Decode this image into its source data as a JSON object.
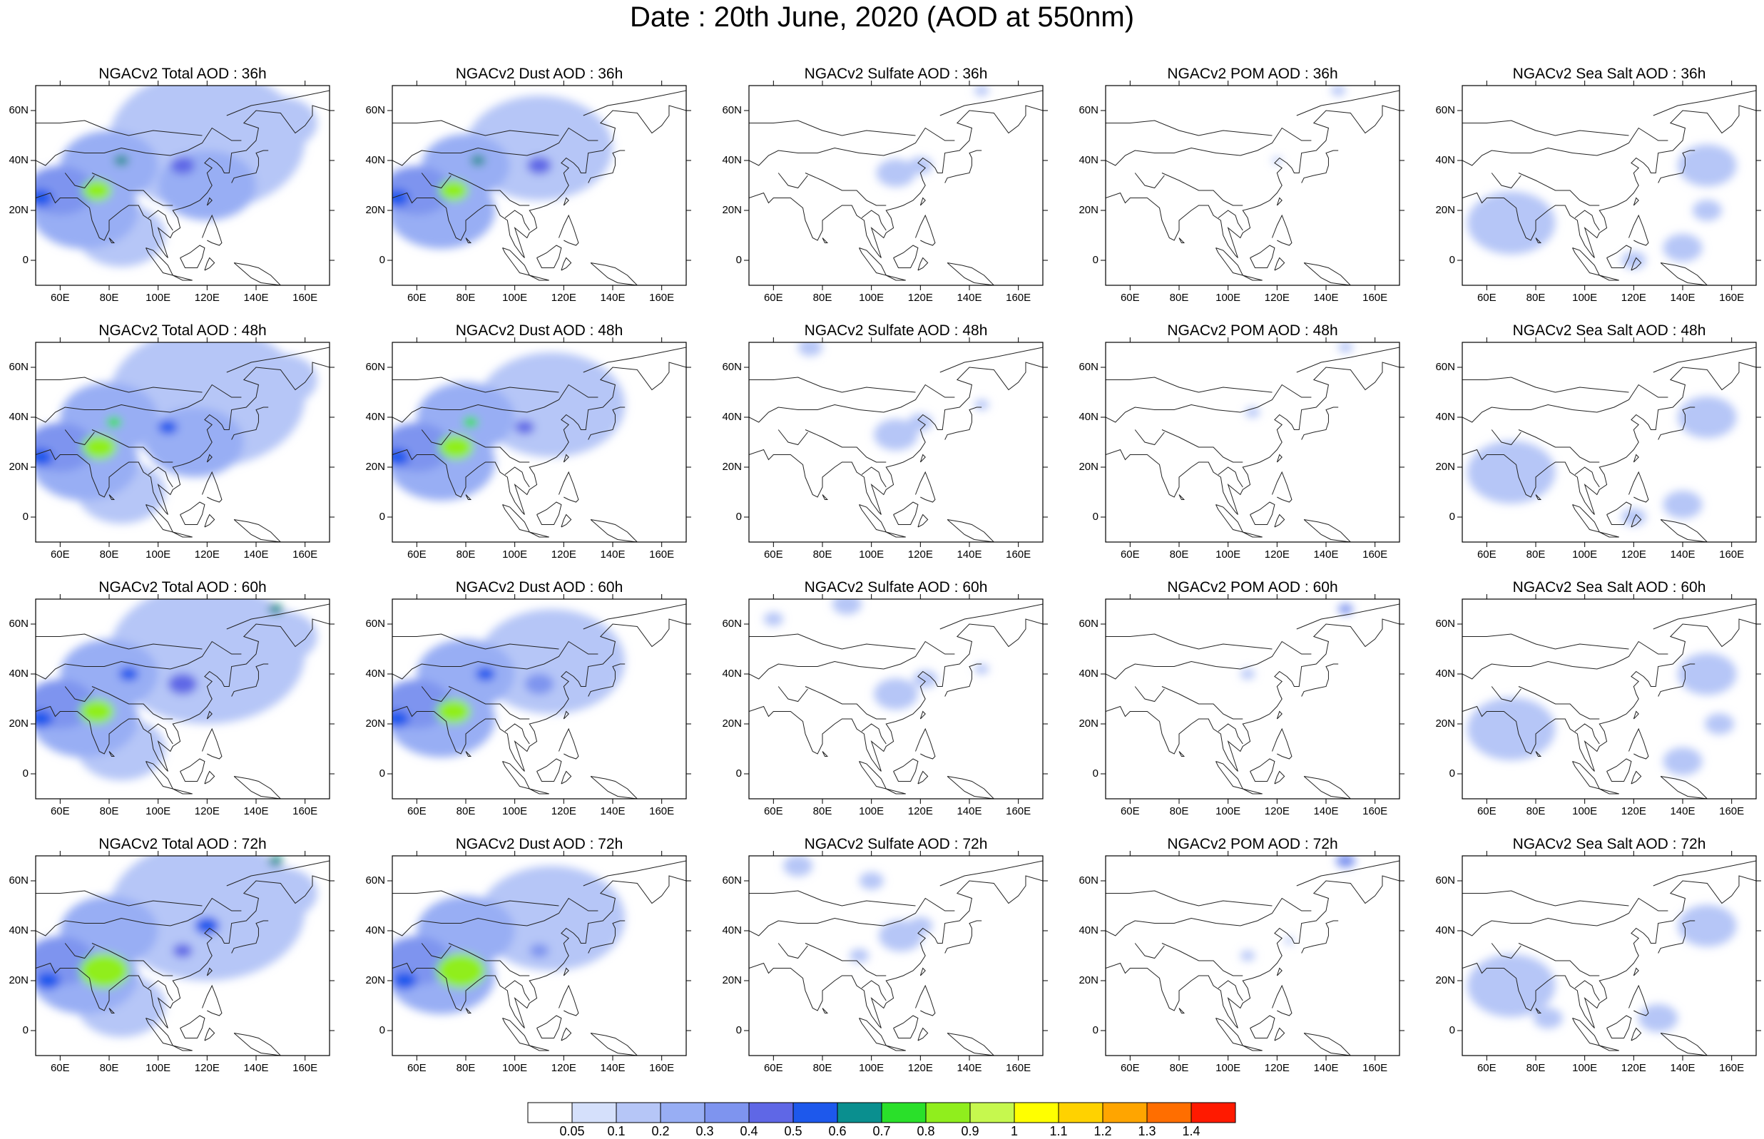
{
  "title": "Date : 20th June, 2020 (AOD at 550nm)",
  "rows": [
    "36h",
    "48h",
    "60h",
    "72h"
  ],
  "species": [
    {
      "key": "total",
      "titles": [
        "NGACv2 Total AOD : 36h",
        "NGACv2 Total AOD : 48h",
        "NGACv2 Total AOD : 60h",
        "NGACv2 Total AOD : 72h"
      ]
    },
    {
      "key": "dust",
      "titles": [
        "NGACv2 Dust AOD : 36h",
        "NGACv2 Dust AOD : 48h",
        "NGACv2 Dust AOD : 60h",
        "NGACv2 Dust AOD : 72h"
      ]
    },
    {
      "key": "sulfate",
      "titles": [
        "NGACv2 Sulfate AOD : 36h",
        "NGACv2 Sulfate AOD : 48h",
        "NGACv2 Sulfate AOD : 60h",
        "NGACv2 Sulfate AOD : 72h"
      ]
    },
    {
      "key": "pom",
      "titles": [
        "NGACv2 POM AOD : 36h",
        "NGACv2 POM AOD : 48h",
        "NGACv2 POM AOD : 60h",
        "NGACv2 POM AOD : 72h"
      ]
    },
    {
      "key": "seasalt",
      "titles": [
        "NGACv2 Sea Salt AOD : 36h",
        "NGACv2 Sea Salt AOD : 48h",
        "NGACv2 Sea Salt AOD : 60h",
        "NGACv2 Sea Salt  AOD : 72h"
      ]
    }
  ],
  "axes": {
    "lon_range": [
      50,
      170
    ],
    "lat_range": [
      -10,
      70
    ],
    "xticks": [
      "60E",
      "80E",
      "100E",
      "120E",
      "140E",
      "160E"
    ],
    "yticks": [
      "60N",
      "40N",
      "20N",
      "0"
    ]
  },
  "colorbar": {
    "levels": [
      "0.05",
      "0.1",
      "0.2",
      "0.3",
      "0.4",
      "0.5",
      "0.6",
      "0.7",
      "0.8",
      "0.9",
      "1",
      "1.1",
      "1.2",
      "1.3",
      "1.4"
    ],
    "colors": [
      "#ffffff",
      "#d5e0fb",
      "#b6c6f7",
      "#98aef4",
      "#7e94ef",
      "#5f67e6",
      "#1d58ec",
      "#0a8f8f",
      "#2ae02a",
      "#90ee1d",
      "#c6f84e",
      "#ffff00",
      "#ffd200",
      "#ffa500",
      "#ff6e00",
      "#ff1a00"
    ]
  },
  "chart_data": {
    "type": "map",
    "variable": "AOD at 550nm",
    "fields_note": "Approximate aerosol optical depth blobs (lon, lat, radius_deg, aod) estimated from shading",
    "fields": {
      "total": [
        [
          [
            70,
            20,
            22,
            0.2
          ],
          [
            60,
            28,
            14,
            0.3
          ],
          [
            80,
            38,
            20,
            0.2
          ],
          [
            120,
            48,
            40,
            0.1
          ],
          [
            75,
            28,
            6,
            0.8
          ],
          [
            85,
            40,
            3,
            0.6
          ],
          [
            110,
            38,
            5,
            0.4
          ],
          [
            120,
            30,
            20,
            0.2
          ],
          [
            150,
            55,
            15,
            0.1
          ],
          [
            85,
            10,
            18,
            0.1
          ],
          [
            52,
            25,
            5,
            0.5
          ]
        ],
        [
          [
            70,
            22,
            22,
            0.2
          ],
          [
            60,
            28,
            14,
            0.3
          ],
          [
            80,
            40,
            20,
            0.2
          ],
          [
            120,
            48,
            40,
            0.1
          ],
          [
            76,
            28,
            7,
            0.85
          ],
          [
            82,
            38,
            3,
            0.7
          ],
          [
            104,
            36,
            4,
            0.5
          ],
          [
            115,
            30,
            20,
            0.2
          ],
          [
            150,
            55,
            15,
            0.1
          ],
          [
            85,
            10,
            18,
            0.1
          ],
          [
            52,
            24,
            5,
            0.5
          ]
        ],
        [
          [
            70,
            22,
            22,
            0.2
          ],
          [
            60,
            28,
            14,
            0.3
          ],
          [
            80,
            40,
            20,
            0.2
          ],
          [
            120,
            48,
            40,
            0.15
          ],
          [
            75,
            25,
            7,
            0.85
          ],
          [
            88,
            40,
            4,
            0.5
          ],
          [
            110,
            36,
            6,
            0.4
          ],
          [
            148,
            66,
            3,
            0.6
          ],
          [
            150,
            55,
            15,
            0.1
          ],
          [
            85,
            10,
            18,
            0.1
          ],
          [
            52,
            22,
            5,
            0.5
          ]
        ],
        [
          [
            70,
            22,
            22,
            0.25
          ],
          [
            60,
            28,
            14,
            0.3
          ],
          [
            80,
            40,
            20,
            0.2
          ],
          [
            120,
            48,
            40,
            0.15
          ],
          [
            78,
            24,
            10,
            0.85
          ],
          [
            120,
            42,
            5,
            0.5
          ],
          [
            110,
            32,
            4,
            0.4
          ],
          [
            148,
            68,
            3,
            0.6
          ],
          [
            150,
            55,
            15,
            0.1
          ],
          [
            85,
            10,
            18,
            0.1
          ],
          [
            55,
            20,
            5,
            0.5
          ]
        ]
      ],
      "dust": [
        [
          [
            70,
            20,
            22,
            0.2
          ],
          [
            60,
            28,
            14,
            0.3
          ],
          [
            80,
            38,
            18,
            0.2
          ],
          [
            110,
            45,
            30,
            0.1
          ],
          [
            75,
            28,
            6,
            0.8
          ],
          [
            85,
            40,
            3,
            0.6
          ],
          [
            110,
            38,
            5,
            0.4
          ],
          [
            52,
            25,
            5,
            0.5
          ]
        ],
        [
          [
            70,
            22,
            22,
            0.2
          ],
          [
            60,
            28,
            14,
            0.3
          ],
          [
            80,
            40,
            20,
            0.2
          ],
          [
            115,
            45,
            30,
            0.1
          ],
          [
            76,
            28,
            7,
            0.85
          ],
          [
            82,
            38,
            3,
            0.7
          ],
          [
            104,
            36,
            4,
            0.4
          ],
          [
            52,
            24,
            5,
            0.5
          ]
        ],
        [
          [
            70,
            22,
            22,
            0.2
          ],
          [
            60,
            28,
            14,
            0.3
          ],
          [
            80,
            40,
            20,
            0.2
          ],
          [
            115,
            45,
            30,
            0.1
          ],
          [
            75,
            25,
            7,
            0.85
          ],
          [
            88,
            40,
            4,
            0.5
          ],
          [
            110,
            36,
            6,
            0.3
          ],
          [
            52,
            22,
            5,
            0.5
          ]
        ],
        [
          [
            70,
            22,
            22,
            0.25
          ],
          [
            60,
            28,
            14,
            0.3
          ],
          [
            80,
            40,
            20,
            0.2
          ],
          [
            115,
            45,
            30,
            0.1
          ],
          [
            78,
            24,
            10,
            0.85
          ],
          [
            110,
            32,
            4,
            0.3
          ],
          [
            55,
            20,
            5,
            0.5
          ]
        ]
      ],
      "sulfate": [
        [
          [
            110,
            35,
            8,
            0.1
          ],
          [
            120,
            38,
            5,
            0.1
          ],
          [
            145,
            68,
            3,
            0.1
          ]
        ],
        [
          [
            110,
            33,
            9,
            0.1
          ],
          [
            120,
            38,
            5,
            0.1
          ],
          [
            75,
            68,
            5,
            0.1
          ],
          [
            145,
            45,
            3,
            0.1
          ]
        ],
        [
          [
            110,
            32,
            9,
            0.1
          ],
          [
            122,
            38,
            5,
            0.1
          ],
          [
            90,
            68,
            6,
            0.1
          ],
          [
            60,
            62,
            4,
            0.1
          ],
          [
            145,
            42,
            3,
            0.1
          ]
        ],
        [
          [
            112,
            38,
            9,
            0.1
          ],
          [
            120,
            42,
            5,
            0.1
          ],
          [
            70,
            66,
            6,
            0.1
          ],
          [
            100,
            60,
            5,
            0.1
          ],
          [
            95,
            30,
            4,
            0.1
          ]
        ]
      ],
      "pom": [
        [
          [
            145,
            68,
            3,
            0.1
          ],
          [
            120,
            40,
            2,
            0.1
          ]
        ],
        [
          [
            148,
            68,
            3,
            0.1
          ],
          [
            110,
            42,
            3,
            0.1
          ]
        ],
        [
          [
            148,
            66,
            3,
            0.3
          ],
          [
            108,
            40,
            3,
            0.1
          ]
        ],
        [
          [
            148,
            68,
            4,
            0.3
          ],
          [
            108,
            30,
            3,
            0.1
          ],
          [
            125,
            36,
            2,
            0.1
          ]
        ]
      ],
      "seasalt": [
        [
          [
            70,
            15,
            18,
            0.1
          ],
          [
            150,
            38,
            12,
            0.1
          ],
          [
            140,
            5,
            8,
            0.1
          ],
          [
            120,
            0,
            5,
            0.1
          ],
          [
            150,
            20,
            6,
            0.1
          ]
        ],
        [
          [
            70,
            18,
            18,
            0.1
          ],
          [
            150,
            40,
            12,
            0.1
          ],
          [
            140,
            5,
            8,
            0.1
          ],
          [
            120,
            0,
            5,
            0.1
          ]
        ],
        [
          [
            70,
            18,
            18,
            0.1
          ],
          [
            150,
            40,
            12,
            0.1
          ],
          [
            140,
            5,
            8,
            0.1
          ],
          [
            155,
            20,
            6,
            0.1
          ]
        ],
        [
          [
            70,
            18,
            18,
            0.1
          ],
          [
            150,
            42,
            12,
            0.1
          ],
          [
            130,
            5,
            8,
            0.1
          ],
          [
            85,
            5,
            6,
            0.1
          ]
        ]
      ]
    }
  }
}
